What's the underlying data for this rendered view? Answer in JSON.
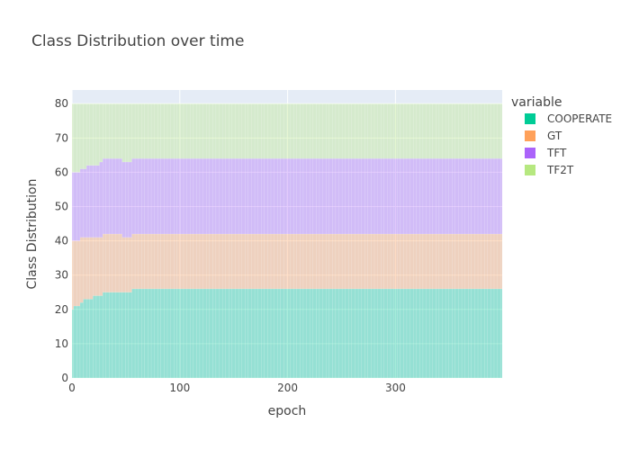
{
  "chart_data": {
    "type": "bar",
    "barmode": "stack",
    "title": "Class Distribution over time",
    "xlabel": "epoch",
    "ylabel": "Class Distribution",
    "xlim": [
      0,
      399
    ],
    "ylim": [
      0,
      84
    ],
    "x_ticks": [
      0,
      100,
      200,
      300
    ],
    "y_ticks": [
      0,
      10,
      20,
      30,
      40,
      50,
      60,
      70,
      80
    ],
    "grid": true,
    "background_color": "#e5ecf6",
    "legend": {
      "title": "variable",
      "placement": "right"
    },
    "x_start": 0,
    "x_step": 3,
    "series": [
      {
        "name": "COOPERATE",
        "color": "#00cc96",
        "values": [
          20,
          21,
          21,
          22,
          23,
          23,
          23,
          24,
          24,
          24,
          25,
          25,
          25,
          25,
          25,
          25,
          25,
          25,
          25,
          26,
          26,
          26,
          26,
          26,
          26,
          26,
          26,
          26,
          26,
          26,
          26,
          26,
          26,
          26,
          26,
          26,
          26,
          26,
          26,
          26,
          26,
          26,
          26,
          26,
          26,
          26,
          26,
          26,
          26,
          26,
          26,
          26,
          26,
          26,
          26,
          26,
          26,
          26,
          26,
          26,
          26,
          26,
          26,
          26,
          26,
          26,
          26,
          26,
          26,
          26,
          26,
          26,
          26,
          26,
          26,
          26,
          26,
          26,
          26,
          26,
          26,
          26,
          26,
          26,
          26,
          26,
          26,
          26,
          26,
          26,
          26,
          26,
          26,
          26,
          26,
          26,
          26,
          26,
          26,
          26,
          26,
          26,
          26,
          26,
          26,
          26,
          26,
          26,
          26,
          26,
          26,
          26,
          26,
          26,
          26,
          26,
          26,
          26,
          26,
          26,
          26,
          26,
          26,
          26,
          26,
          26,
          26,
          26,
          26,
          26,
          26,
          26,
          26,
          26
        ]
      },
      {
        "name": "GT",
        "color": "#ffa15a",
        "values": [
          20,
          19,
          19,
          19,
          18,
          18,
          18,
          17,
          17,
          17,
          17,
          17,
          17,
          17,
          17,
          17,
          16,
          16,
          16,
          16,
          16,
          16,
          16,
          16,
          16,
          16,
          16,
          16,
          16,
          16,
          16,
          16,
          16,
          16,
          16,
          16,
          16,
          16,
          16,
          16,
          16,
          16,
          16,
          16,
          16,
          16,
          16,
          16,
          16,
          16,
          16,
          16,
          16,
          16,
          16,
          16,
          16,
          16,
          16,
          16,
          16,
          16,
          16,
          16,
          16,
          16,
          16,
          16,
          16,
          16,
          16,
          16,
          16,
          16,
          16,
          16,
          16,
          16,
          16,
          16,
          16,
          16,
          16,
          16,
          16,
          16,
          16,
          16,
          16,
          16,
          16,
          16,
          16,
          16,
          16,
          16,
          16,
          16,
          16,
          16,
          16,
          16,
          16,
          16,
          16,
          16,
          16,
          16,
          16,
          16,
          16,
          16,
          16,
          16,
          16,
          16,
          16,
          16,
          16,
          16,
          16,
          16,
          16,
          16,
          16,
          16,
          16,
          16,
          16,
          16,
          16,
          16,
          16,
          16
        ]
      },
      {
        "name": "TFT",
        "color": "#ab63fa",
        "values": [
          20,
          20,
          20,
          20,
          20,
          21,
          21,
          21,
          21,
          22,
          22,
          22,
          22,
          22,
          22,
          22,
          22,
          22,
          22,
          22,
          22,
          22,
          22,
          22,
          22,
          22,
          22,
          22,
          22,
          22,
          22,
          22,
          22,
          22,
          22,
          22,
          22,
          22,
          22,
          22,
          22,
          22,
          22,
          22,
          22,
          22,
          22,
          22,
          22,
          22,
          22,
          22,
          22,
          22,
          22,
          22,
          22,
          22,
          22,
          22,
          22,
          22,
          22,
          22,
          22,
          22,
          22,
          22,
          22,
          22,
          22,
          22,
          22,
          22,
          22,
          22,
          22,
          22,
          22,
          22,
          22,
          22,
          22,
          22,
          22,
          22,
          22,
          22,
          22,
          22,
          22,
          22,
          22,
          22,
          22,
          22,
          22,
          22,
          22,
          22,
          22,
          22,
          22,
          22,
          22,
          22,
          22,
          22,
          22,
          22,
          22,
          22,
          22,
          22,
          22,
          22,
          22,
          22,
          22,
          22,
          22,
          22,
          22,
          22,
          22,
          22,
          22,
          22,
          22,
          22,
          22,
          22,
          22,
          22
        ]
      },
      {
        "name": "TF2T",
        "color": "#b6e880",
        "values": [
          20,
          20,
          20,
          19,
          19,
          18,
          18,
          18,
          18,
          17,
          16,
          16,
          16,
          16,
          16,
          16,
          17,
          17,
          17,
          16,
          16,
          16,
          16,
          16,
          16,
          16,
          16,
          16,
          16,
          16,
          16,
          16,
          16,
          16,
          16,
          16,
          16,
          16,
          16,
          16,
          16,
          16,
          16,
          16,
          16,
          16,
          16,
          16,
          16,
          16,
          16,
          16,
          16,
          16,
          16,
          16,
          16,
          16,
          16,
          16,
          16,
          16,
          16,
          16,
          16,
          16,
          16,
          16,
          16,
          16,
          16,
          16,
          16,
          16,
          16,
          16,
          16,
          16,
          16,
          16,
          16,
          16,
          16,
          16,
          16,
          16,
          16,
          16,
          16,
          16,
          16,
          16,
          16,
          16,
          16,
          16,
          16,
          16,
          16,
          16,
          16,
          16,
          16,
          16,
          16,
          16,
          16,
          16,
          16,
          16,
          16,
          16,
          16,
          16,
          16,
          16,
          16,
          16,
          16,
          16,
          16,
          16,
          16,
          16,
          16,
          16,
          16,
          16,
          16,
          16,
          16,
          16,
          16,
          16
        ]
      }
    ]
  }
}
